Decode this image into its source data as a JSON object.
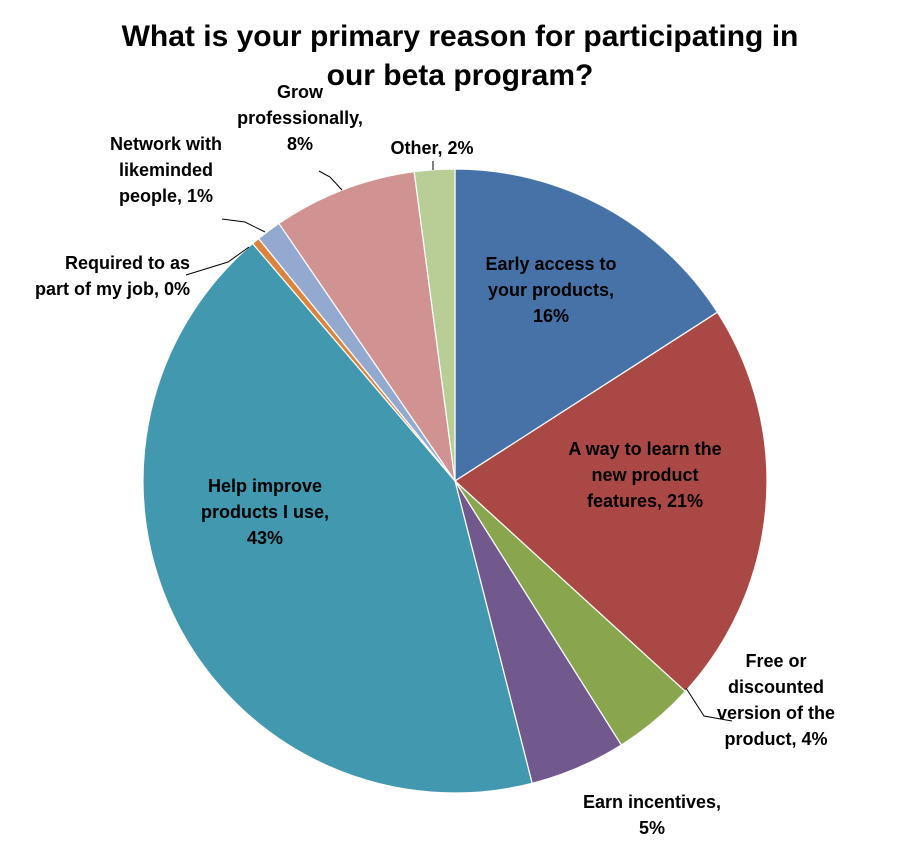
{
  "chart_data": {
    "type": "pie",
    "title": "What is your primary reason for participating in our beta program?",
    "title_lines": [
      "What is your primary reason for participating in",
      "our beta program?"
    ],
    "start_angle_deg": 0,
    "direction": "clockwise",
    "legend": "none",
    "slices": [
      {
        "category": "Early access to your products",
        "value": 16,
        "label_lines": [
          "Early access to",
          "your products,",
          "16%"
        ],
        "label_position": "inside",
        "color": "#4672A8"
      },
      {
        "category": "A way to learn the new product features",
        "value": 21,
        "label_lines": [
          "A way to learn the",
          "new product",
          "features, 21%"
        ],
        "label_position": "inside",
        "color": "#AA4845"
      },
      {
        "category": "Free or discounted version of the product",
        "value": 4.3,
        "label_lines": [
          "Free or",
          "discounted",
          "version of the",
          "product, 4%"
        ],
        "label_position": "outside",
        "color": "#89A54E"
      },
      {
        "category": "Earn incentives",
        "value": 5,
        "label_lines": [
          "Earn incentives,",
          "5%"
        ],
        "label_position": "outside",
        "color": "#71598E"
      },
      {
        "category": "Help improve products I use",
        "value": 43,
        "label_lines": [
          "Help improve",
          "products I use,",
          "43%"
        ],
        "label_position": "inside",
        "color": "#4198AF"
      },
      {
        "category": "Required to as part of my job",
        "value": 0.4,
        "label_lines": [
          "Required to as",
          "part of my job, 0%"
        ],
        "label_position": "outside",
        "color": "#DB843D"
      },
      {
        "category": "Network with likeminded people",
        "value": 1.3,
        "label_lines": [
          "Network with",
          "likeminded",
          "people, 1%"
        ],
        "label_position": "outside",
        "color": "#93A9CF"
      },
      {
        "category": "Grow professionally",
        "value": 7.5,
        "label_lines": [
          "Grow",
          "professionally,",
          "8%"
        ],
        "label_position": "outside",
        "color": "#D19392"
      },
      {
        "category": "Other",
        "value": 2.1,
        "label_lines": [
          "Other, 2%"
        ],
        "label_position": "outside",
        "color": "#B9CD96"
      }
    ]
  }
}
